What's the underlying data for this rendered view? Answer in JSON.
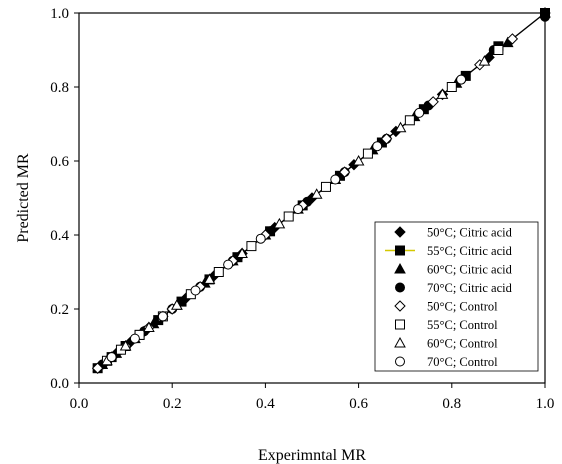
{
  "chart_data": {
    "type": "scatter",
    "title": "",
    "xlabel": "Experimntal MR",
    "ylabel": "Predicted MR",
    "xlim": [
      0.0,
      1.0
    ],
    "ylim": [
      0.0,
      1.0
    ],
    "xticks": [
      "0.0",
      "0.2",
      "0.4",
      "0.6",
      "0.8",
      "1.0"
    ],
    "yticks": [
      "0.0",
      "0.2",
      "0.4",
      "0.6",
      "0.8",
      "1.0"
    ],
    "grid": false,
    "legend_position": "bottom-right",
    "reference_line": {
      "x": [
        0.03,
        1.0
      ],
      "y": [
        0.03,
        1.0
      ],
      "color": "#000000"
    },
    "series": [
      {
        "name": "50°C; Citric acid",
        "marker": "diamond-filled",
        "x": [
          0.04,
          0.06,
          0.08,
          0.11,
          0.14,
          0.18,
          0.23,
          0.29,
          0.35,
          0.42,
          0.5,
          0.59,
          0.68,
          0.78,
          0.88,
          1.0
        ],
        "y": [
          0.04,
          0.06,
          0.08,
          0.11,
          0.14,
          0.18,
          0.23,
          0.29,
          0.35,
          0.42,
          0.5,
          0.59,
          0.68,
          0.78,
          0.88,
          1.0
        ]
      },
      {
        "name": "55°C; Citric acid",
        "marker": "square-filled",
        "line_color": "#d4c800",
        "x": [
          0.04,
          0.07,
          0.1,
          0.13,
          0.17,
          0.22,
          0.28,
          0.34,
          0.41,
          0.48,
          0.56,
          0.65,
          0.74,
          0.83,
          0.9,
          1.0
        ],
        "y": [
          0.04,
          0.07,
          0.1,
          0.13,
          0.17,
          0.22,
          0.28,
          0.34,
          0.41,
          0.48,
          0.56,
          0.65,
          0.74,
          0.83,
          0.91,
          1.0
        ]
      },
      {
        "name": "60°C; Citric acid",
        "marker": "triangle-filled",
        "x": [
          0.05,
          0.08,
          0.12,
          0.16,
          0.21,
          0.27,
          0.33,
          0.4,
          0.47,
          0.55,
          0.63,
          0.72,
          0.81,
          0.92,
          1.0
        ],
        "y": [
          0.05,
          0.08,
          0.12,
          0.16,
          0.21,
          0.27,
          0.33,
          0.4,
          0.47,
          0.55,
          0.63,
          0.72,
          0.81,
          0.92,
          1.0
        ]
      },
      {
        "name": "70°C; Citric acid",
        "marker": "circle-filled",
        "x": [
          0.05,
          0.09,
          0.14,
          0.2,
          0.26,
          0.33,
          0.41,
          0.49,
          0.57,
          0.66,
          0.75,
          0.82,
          0.89,
          1.0
        ],
        "y": [
          0.05,
          0.09,
          0.14,
          0.2,
          0.26,
          0.33,
          0.41,
          0.49,
          0.57,
          0.66,
          0.75,
          0.82,
          0.9,
          0.99
        ]
      },
      {
        "name": "50°C; Control",
        "marker": "diamond-open",
        "x": [
          0.04,
          0.07,
          0.1,
          0.15,
          0.2,
          0.26,
          0.33,
          0.4,
          0.48,
          0.57,
          0.66,
          0.76,
          0.86,
          0.93
        ],
        "y": [
          0.04,
          0.07,
          0.1,
          0.15,
          0.2,
          0.26,
          0.33,
          0.4,
          0.48,
          0.57,
          0.66,
          0.76,
          0.86,
          0.93
        ]
      },
      {
        "name": "55°C; Control",
        "marker": "square-open",
        "x": [
          0.06,
          0.09,
          0.13,
          0.18,
          0.24,
          0.3,
          0.37,
          0.45,
          0.53,
          0.62,
          0.71,
          0.8,
          0.9
        ],
        "y": [
          0.06,
          0.09,
          0.13,
          0.18,
          0.24,
          0.3,
          0.37,
          0.45,
          0.53,
          0.62,
          0.71,
          0.8,
          0.9
        ]
      },
      {
        "name": "60°C; Control",
        "marker": "triangle-open",
        "x": [
          0.06,
          0.1,
          0.15,
          0.21,
          0.28,
          0.35,
          0.43,
          0.51,
          0.6,
          0.69,
          0.78,
          0.87
        ],
        "y": [
          0.06,
          0.1,
          0.15,
          0.21,
          0.28,
          0.35,
          0.43,
          0.51,
          0.6,
          0.69,
          0.78,
          0.87
        ]
      },
      {
        "name": "70°C; Control",
        "marker": "circle-open",
        "x": [
          0.07,
          0.12,
          0.18,
          0.25,
          0.32,
          0.39,
          0.47,
          0.55,
          0.64,
          0.73,
          0.82
        ],
        "y": [
          0.07,
          0.12,
          0.18,
          0.25,
          0.32,
          0.39,
          0.47,
          0.55,
          0.64,
          0.73,
          0.82
        ]
      }
    ]
  }
}
